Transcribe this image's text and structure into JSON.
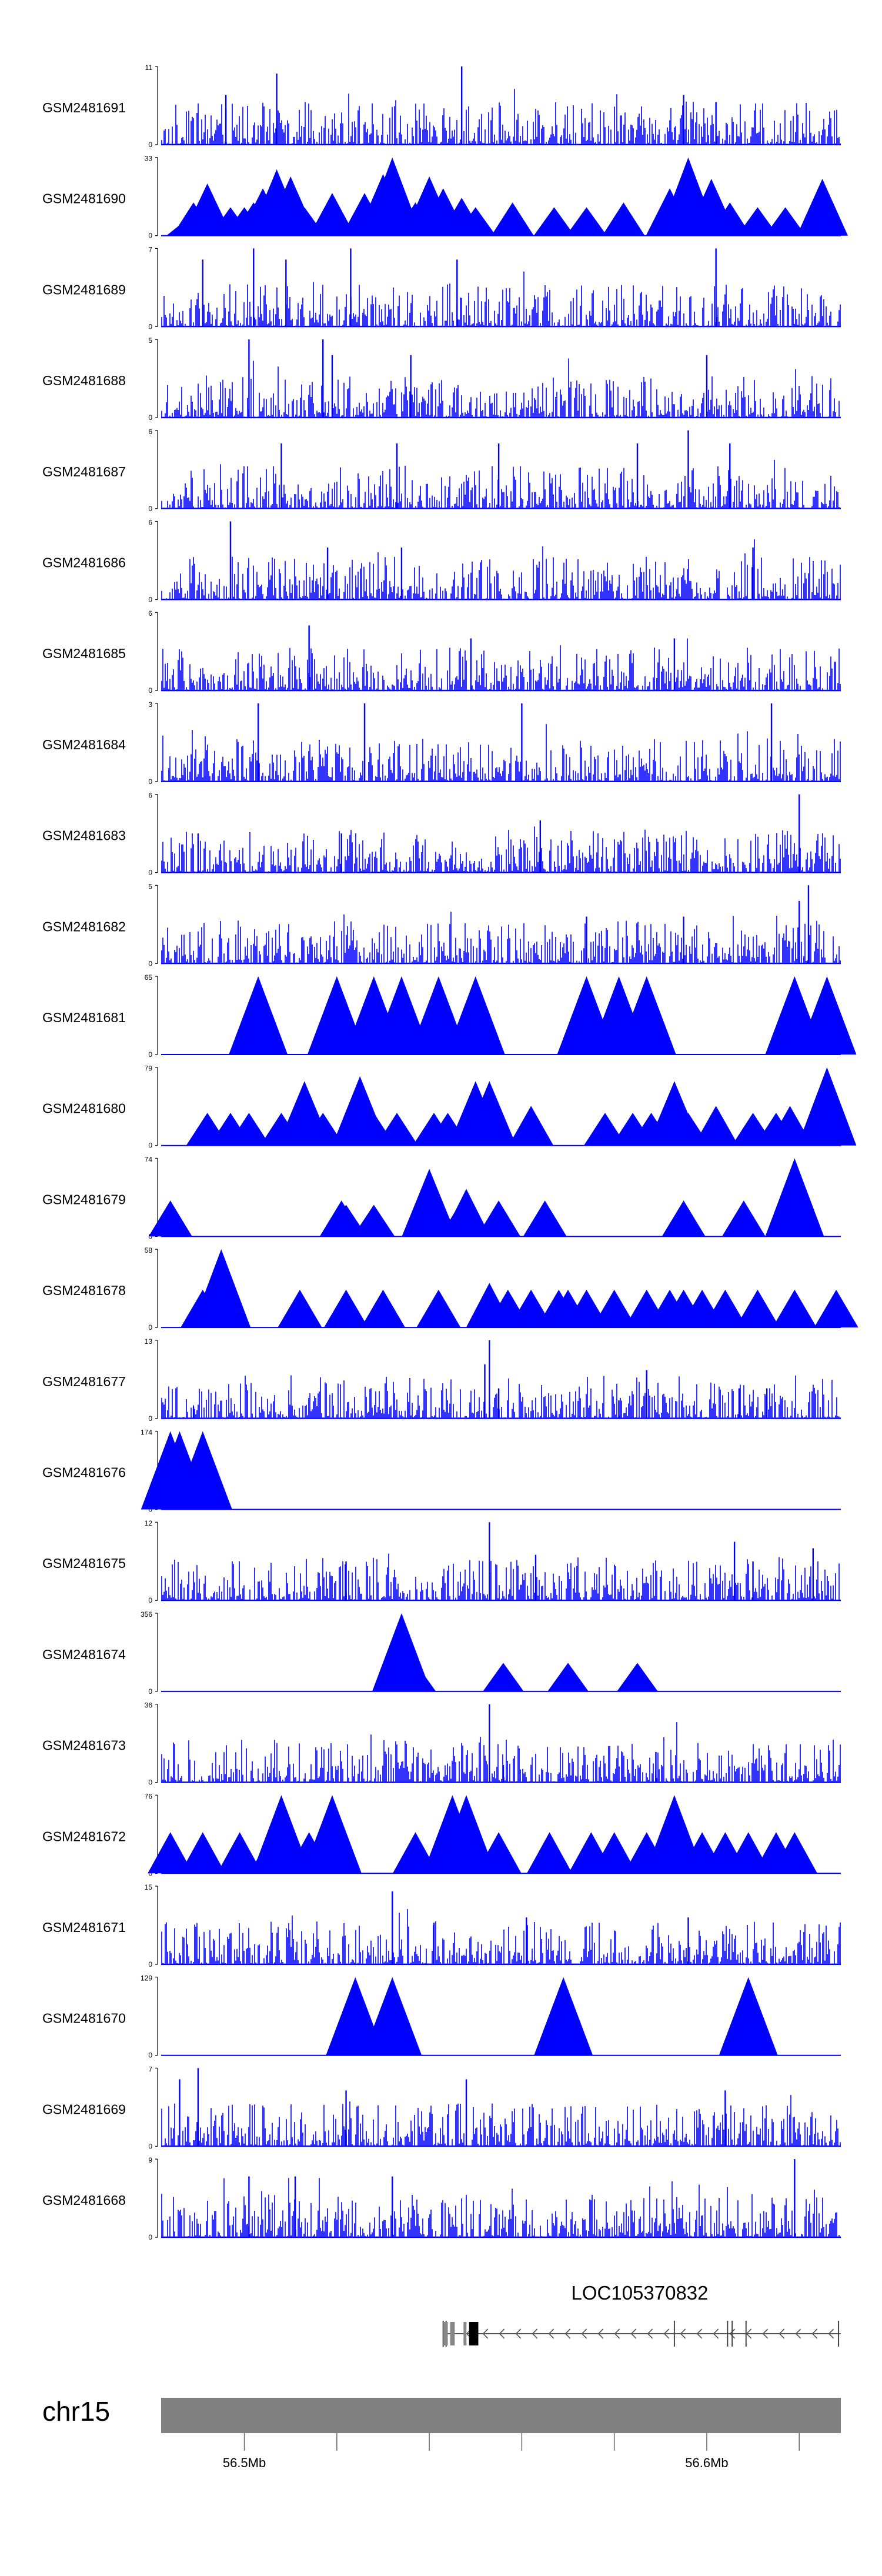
{
  "chart_data": {
    "type": "area",
    "title": "",
    "xlabel": "",
    "ylabel": "",
    "track_color": "#0000ff",
    "axis_color": "#000000",
    "x_range_mb": [
      56.482,
      56.629
    ],
    "tracks": [
      {
        "label": "GSM2481691",
        "ymax": 11,
        "ymax_label": "11",
        "ymin_label": "0",
        "style": "dense",
        "seed": 11,
        "peaks": [
          [
            56.496,
            7
          ],
          [
            56.496,
            5
          ],
          [
            56.507,
            10
          ],
          [
            56.547,
            11
          ],
          [
            56.595,
            7
          ],
          [
            56.602,
            6
          ]
        ]
      },
      {
        "label": "GSM2481690",
        "ymax": 33,
        "ymax_label": "33",
        "ymin_label": "0",
        "style": "tri",
        "seed": 12,
        "peaks": [
          [
            56.487,
            6
          ],
          [
            56.489,
            14
          ],
          [
            56.492,
            22
          ],
          [
            56.497,
            12
          ],
          [
            56.5,
            12
          ],
          [
            56.502,
            14
          ],
          [
            56.504,
            20
          ],
          [
            56.507,
            28
          ],
          [
            56.51,
            25
          ],
          [
            56.513,
            12
          ],
          [
            56.519,
            18
          ],
          [
            56.526,
            18
          ],
          [
            56.53,
            26
          ],
          [
            56.532,
            33
          ],
          [
            56.537,
            14
          ],
          [
            56.54,
            25
          ],
          [
            56.543,
            20
          ],
          [
            56.547,
            16
          ],
          [
            56.55,
            12
          ],
          [
            56.558,
            14
          ],
          [
            56.567,
            12
          ],
          [
            56.574,
            12
          ],
          [
            56.582,
            14
          ],
          [
            56.592,
            20
          ],
          [
            56.596,
            33
          ],
          [
            56.601,
            24
          ],
          [
            56.605,
            14
          ],
          [
            56.611,
            12
          ],
          [
            56.617,
            12
          ],
          [
            56.625,
            24
          ]
        ]
      },
      {
        "label": "GSM2481689",
        "ymax": 7,
        "ymax_label": "7",
        "ymin_label": "0",
        "style": "dense",
        "seed": 13,
        "peaks": [
          [
            56.491,
            6
          ],
          [
            56.502,
            7
          ],
          [
            56.509,
            6
          ],
          [
            56.523,
            7
          ],
          [
            56.546,
            6
          ],
          [
            56.602,
            7
          ]
        ]
      },
      {
        "label": "GSM2481688",
        "ymax": 5,
        "ymax_label": "5",
        "ymin_label": "0",
        "style": "dense",
        "seed": 14,
        "peaks": [
          [
            56.501,
            5
          ],
          [
            56.517,
            5
          ],
          [
            56.519,
            4
          ],
          [
            56.536,
            4
          ],
          [
            56.6,
            4
          ]
        ]
      },
      {
        "label": "GSM2481687",
        "ymax": 6,
        "ymax_label": "6",
        "ymin_label": "0",
        "style": "dense",
        "seed": 15,
        "peaks": [
          [
            56.508,
            5
          ],
          [
            56.533,
            5
          ],
          [
            56.555,
            5
          ],
          [
            56.585,
            5
          ],
          [
            56.596,
            6
          ],
          [
            56.605,
            5
          ]
        ]
      },
      {
        "label": "GSM2481686",
        "ymax": 6,
        "ymax_label": "6",
        "ymin_label": "0",
        "style": "dense",
        "seed": 16,
        "peaks": [
          [
            56.497,
            6
          ],
          [
            56.518,
            4
          ],
          [
            56.534,
            4
          ],
          [
            56.61,
            4
          ]
        ]
      },
      {
        "label": "GSM2481685",
        "ymax": 6,
        "ymax_label": "6",
        "ymin_label": "0",
        "style": "dense",
        "seed": 17,
        "peaks": [
          [
            56.514,
            5
          ],
          [
            56.549,
            4
          ],
          [
            56.593,
            4
          ]
        ]
      },
      {
        "label": "GSM2481684",
        "ymax": 3,
        "ymax_label": "3",
        "ymin_label": "0",
        "style": "dense",
        "seed": 18,
        "peaks": [
          [
            56.503,
            3
          ],
          [
            56.526,
            3
          ],
          [
            56.56,
            3
          ],
          [
            56.614,
            3
          ]
        ]
      },
      {
        "label": "GSM2481683",
        "ymax": 6,
        "ymax_label": "6",
        "ymin_label": "0",
        "style": "dense",
        "seed": 19,
        "peaks": [
          [
            56.49,
            3
          ],
          [
            56.521,
            3
          ],
          [
            56.564,
            4
          ],
          [
            56.62,
            6
          ]
        ]
      },
      {
        "label": "GSM2481682",
        "ymax": 5,
        "ymax_label": "5",
        "ymin_label": "0",
        "style": "dense",
        "seed": 20,
        "peaks": [
          [
            56.574,
            3
          ],
          [
            56.595,
            3
          ],
          [
            56.62,
            4
          ],
          [
            56.622,
            5
          ]
        ]
      },
      {
        "label": "GSM2481681",
        "ymax": 65,
        "ymax_label": "65",
        "ymin_label": "0",
        "style": "tri",
        "seed": 21,
        "peaks": [
          [
            56.503,
            65
          ],
          [
            56.52,
            65
          ],
          [
            56.528,
            65
          ],
          [
            56.534,
            65
          ],
          [
            56.542,
            65
          ],
          [
            56.55,
            65
          ],
          [
            56.574,
            65
          ],
          [
            56.581,
            65
          ],
          [
            56.587,
            65
          ],
          [
            56.619,
            65
          ],
          [
            56.626,
            65
          ]
        ]
      },
      {
        "label": "GSM2481680",
        "ymax": 79,
        "ymax_label": "79",
        "ymin_label": "0",
        "style": "tri",
        "seed": 22,
        "peaks": [
          [
            56.492,
            33
          ],
          [
            56.497,
            33
          ],
          [
            56.501,
            33
          ],
          [
            56.508,
            33
          ],
          [
            56.513,
            65
          ],
          [
            56.517,
            33
          ],
          [
            56.524,
            33
          ],
          [
            56.525,
            70
          ],
          [
            56.528,
            33
          ],
          [
            56.533,
            33
          ],
          [
            56.541,
            33
          ],
          [
            56.544,
            33
          ],
          [
            56.548,
            33
          ],
          [
            56.55,
            65
          ],
          [
            56.553,
            65
          ],
          [
            56.562,
            40
          ],
          [
            56.578,
            33
          ],
          [
            56.584,
            33
          ],
          [
            56.588,
            33
          ],
          [
            56.593,
            65
          ],
          [
            56.596,
            33
          ],
          [
            56.602,
            40
          ],
          [
            56.61,
            33
          ],
          [
            56.615,
            33
          ],
          [
            56.618,
            40
          ],
          [
            56.624,
            33
          ],
          [
            56.626,
            79
          ]
        ]
      },
      {
        "label": "GSM2481679",
        "ymax": 74,
        "ymax_label": "74",
        "ymin_label": "0",
        "style": "tri",
        "seed": 23,
        "peaks": [
          [
            56.484,
            34
          ],
          [
            56.521,
            34
          ],
          [
            56.522,
            30
          ],
          [
            56.528,
            30
          ],
          [
            56.539,
            34
          ],
          [
            56.54,
            64
          ],
          [
            56.547,
            34
          ],
          [
            56.548,
            45
          ],
          [
            56.555,
            34
          ],
          [
            56.565,
            34
          ],
          [
            56.595,
            34
          ],
          [
            56.608,
            34
          ],
          [
            56.619,
            74
          ],
          [
            56.62,
            34
          ]
        ]
      },
      {
        "label": "GSM2481678",
        "ymax": 58,
        "ymax_label": "58",
        "ymin_label": "0",
        "style": "tri",
        "seed": 24,
        "peaks": [
          [
            56.491,
            28
          ],
          [
            56.495,
            58
          ],
          [
            56.512,
            28
          ],
          [
            56.522,
            28
          ],
          [
            56.53,
            28
          ],
          [
            56.542,
            28
          ],
          [
            56.553,
            33
          ],
          [
            56.557,
            28
          ],
          [
            56.562,
            28
          ],
          [
            56.568,
            28
          ],
          [
            56.57,
            28
          ],
          [
            56.574,
            28
          ],
          [
            56.58,
            28
          ],
          [
            56.587,
            28
          ],
          [
            56.592,
            28
          ],
          [
            56.595,
            28
          ],
          [
            56.599,
            28
          ],
          [
            56.604,
            28
          ],
          [
            56.611,
            28
          ],
          [
            56.619,
            28
          ],
          [
            56.628,
            28
          ]
        ]
      },
      {
        "label": "GSM2481677",
        "ymax": 13,
        "ymax_label": "13",
        "ymin_label": "0",
        "style": "dense",
        "seed": 25,
        "peaks": [
          [
            56.489,
            2
          ],
          [
            56.553,
            13
          ],
          [
            56.552,
            9
          ],
          [
            56.555,
            5
          ],
          [
            56.581,
            3
          ],
          [
            56.587,
            8
          ],
          [
            56.607,
            5
          ],
          [
            56.613,
            5
          ]
        ]
      },
      {
        "label": "GSM2481676",
        "ymax": 174,
        "ymax_label": "174",
        "ymin_label": "0",
        "style": "tri",
        "seed": 26,
        "peaks": [
          [
            56.484,
            174
          ],
          [
            56.486,
            174
          ],
          [
            56.491,
            174
          ]
        ]
      },
      {
        "label": "GSM2481675",
        "ymax": 12,
        "ymax_label": "12",
        "ymin_label": "0",
        "style": "dense",
        "seed": 27,
        "peaks": [
          [
            56.522,
            6
          ],
          [
            56.553,
            12
          ],
          [
            56.563,
            7
          ],
          [
            56.606,
            9
          ],
          [
            56.61,
            6
          ],
          [
            56.623,
            8
          ]
        ]
      },
      {
        "label": "GSM2481674",
        "ymax": 356,
        "ymax_label": "356",
        "ymin_label": "0",
        "style": "tri",
        "seed": 28,
        "peaks": [
          [
            56.534,
            356
          ],
          [
            56.537,
            130
          ],
          [
            56.556,
            130
          ],
          [
            56.57,
            130
          ],
          [
            56.585,
            130
          ]
        ]
      },
      {
        "label": "GSM2481673",
        "ymax": 36,
        "ymax_label": "36",
        "ymin_label": "0",
        "style": "dense",
        "seed": 29,
        "peaks": [
          [
            56.553,
            36
          ],
          [
            56.556,
            8
          ],
          [
            56.589,
            14
          ]
        ]
      },
      {
        "label": "GSM2481672",
        "ymax": 76,
        "ymax_label": "76",
        "ymin_label": "0",
        "style": "tri",
        "seed": 30,
        "peaks": [
          [
            56.484,
            40
          ],
          [
            56.491,
            40
          ],
          [
            56.499,
            40
          ],
          [
            56.506,
            40
          ],
          [
            56.508,
            76
          ],
          [
            56.514,
            40
          ],
          [
            56.519,
            76
          ],
          [
            56.537,
            40
          ],
          [
            56.545,
            76
          ],
          [
            56.548,
            76
          ],
          [
            56.555,
            40
          ],
          [
            56.566,
            40
          ],
          [
            56.575,
            40
          ],
          [
            56.58,
            40
          ],
          [
            56.587,
            40
          ],
          [
            56.593,
            76
          ],
          [
            56.599,
            40
          ],
          [
            56.604,
            40
          ],
          [
            56.609,
            40
          ],
          [
            56.615,
            40
          ],
          [
            56.619,
            40
          ]
        ]
      },
      {
        "label": "GSM2481671",
        "ymax": 15,
        "ymax_label": "15",
        "ymin_label": "0",
        "style": "dense",
        "seed": 31,
        "peaks": [
          [
            56.532,
            14
          ],
          [
            56.541,
            8
          ],
          [
            56.561,
            9
          ],
          [
            56.596,
            9
          ]
        ]
      },
      {
        "label": "GSM2481670",
        "ymax": 129,
        "ymax_label": "129",
        "ymin_label": "0",
        "style": "tri",
        "seed": 32,
        "peaks": [
          [
            56.524,
            129
          ],
          [
            56.532,
            129
          ],
          [
            56.569,
            129
          ],
          [
            56.609,
            129
          ]
        ]
      },
      {
        "label": "GSM2481669",
        "ymax": 7,
        "ymax_label": "7",
        "ymin_label": "0",
        "style": "dense",
        "seed": 33,
        "peaks": [
          [
            56.486,
            6
          ],
          [
            56.49,
            7
          ],
          [
            56.522,
            5
          ],
          [
            56.548,
            6
          ],
          [
            56.604,
            5
          ]
        ]
      },
      {
        "label": "GSM2481668",
        "ymax": 9,
        "ymax_label": "9",
        "ymin_label": "0",
        "style": "dense",
        "seed": 34,
        "peaks": [
          [
            56.501,
            7
          ],
          [
            56.511,
            7
          ],
          [
            56.532,
            7
          ],
          [
            56.619,
            9
          ]
        ]
      }
    ],
    "gene": {
      "name": "LOC105370832",
      "strand": "-",
      "start_mb": 56.543,
      "end_mb": 56.629,
      "exons_mb": [
        [
          56.543,
          56.544
        ],
        [
          56.5445,
          56.5455
        ],
        [
          56.5474,
          56.5478
        ],
        [
          56.5486,
          56.5506
        ]
      ],
      "extra_marks_mb": [
        56.593,
        56.6045,
        56.6055,
        56.6085,
        56.6285
      ]
    },
    "ideogram": {
      "chromosome": "chr15",
      "color": "#808080",
      "tick_marks_mb": [
        56.5,
        56.52,
        56.54,
        56.56,
        56.58,
        56.6,
        56.62
      ],
      "tick_labels": [
        {
          "mb": 56.5,
          "label": "56.5Mb"
        },
        {
          "mb": 56.6,
          "label": "56.6Mb"
        }
      ]
    }
  }
}
